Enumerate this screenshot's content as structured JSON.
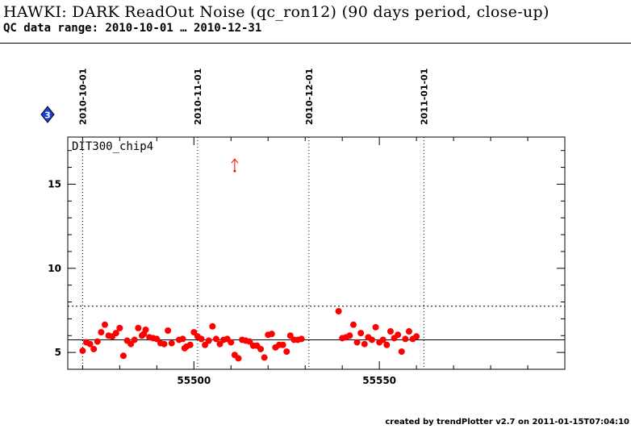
{
  "header": {
    "title": "HAWKI: DARK ReadOut Noise (qc_ron12) (90 days period, close-up)",
    "subtitle": "QC data range: 2010-10-01 … 2010-12-31"
  },
  "footer": {
    "text": "created by trendPlotter v2.7 on 2011-01-15T07:04:10"
  },
  "badge": {
    "text": "3",
    "color": "#1a3fd6"
  },
  "chart_data": {
    "type": "scatter",
    "panel_label": "DIT300_chip4",
    "xlim": [
      55466,
      55600
    ],
    "ylim": [
      4,
      17.8
    ],
    "x_ticks": [
      55500,
      55550
    ],
    "y_ticks": [
      5,
      10,
      15
    ],
    "date_markers": [
      {
        "mjd": 55470,
        "label": "2010-10-01"
      },
      {
        "mjd": 55501,
        "label": "2010-11-01"
      },
      {
        "mjd": 55531,
        "label": "2010-12-01"
      },
      {
        "mjd": 55562,
        "label": "2011-01-01"
      }
    ],
    "mean_line": 5.75,
    "threshold_line": 7.75,
    "grid": false,
    "marker_color": "#ff0000",
    "outlier": {
      "x": 55511,
      "y": 16.5,
      "direction": "up"
    },
    "x": [
      55470,
      55471,
      55472,
      55473,
      55474,
      55475,
      55476,
      55477,
      55478,
      55479,
      55480,
      55481,
      55482,
      55483,
      55484,
      55485,
      55486,
      55486.5,
      55487,
      55488,
      55489,
      55490,
      55491,
      55492,
      55493,
      55494,
      55496,
      55497,
      55497.5,
      55498,
      55499,
      55500,
      55501,
      55502,
      55503,
      55504,
      55505,
      55506,
      55507,
      55508,
      55509,
      55510,
      55511,
      55512,
      55513,
      55514,
      55515,
      55516,
      55517,
      55518,
      55519,
      55520,
      55521,
      55522,
      55523,
      55524,
      55525,
      55526,
      55527,
      55528,
      55529,
      55539,
      55540,
      55541,
      55542,
      55543,
      55544,
      55545,
      55546,
      55547,
      55548,
      55549,
      55550,
      55551,
      55552,
      55553,
      55554,
      55555,
      55556,
      55557,
      55558,
      55559,
      55560
    ],
    "y": [
      5.1,
      5.6,
      5.5,
      5.2,
      5.65,
      6.2,
      6.65,
      6.0,
      5.95,
      6.15,
      6.45,
      4.8,
      5.7,
      5.5,
      5.75,
      6.45,
      6.0,
      6.1,
      6.35,
      5.9,
      5.85,
      5.8,
      5.55,
      5.5,
      6.3,
      5.55,
      5.75,
      5.8,
      5.25,
      5.35,
      5.45,
      6.2,
      5.95,
      5.8,
      5.45,
      5.7,
      6.55,
      5.8,
      5.5,
      5.75,
      5.8,
      5.6,
      4.85,
      4.65,
      5.75,
      5.7,
      5.65,
      5.4,
      5.4,
      5.2,
      4.7,
      6.05,
      6.1,
      5.3,
      5.45,
      5.45,
      5.05,
      6.0,
      5.75,
      5.75,
      5.8,
      7.45,
      5.85,
      5.9,
      6.0,
      6.65,
      5.6,
      6.15,
      5.5,
      5.9,
      5.75,
      6.5,
      5.6,
      5.75,
      5.45,
      6.25,
      5.85,
      6.05,
      5.05,
      5.8,
      6.25,
      5.8,
      5.95
    ]
  }
}
